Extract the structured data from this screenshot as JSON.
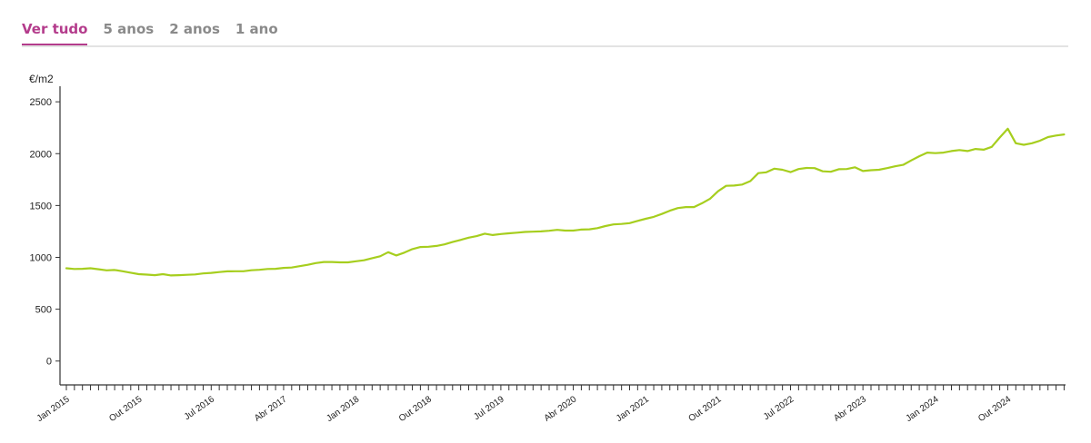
{
  "tabs": [
    {
      "label": "Ver tudo",
      "active": true
    },
    {
      "label": "5 anos",
      "active": false
    },
    {
      "label": "2 anos",
      "active": false
    },
    {
      "label": "1 ano",
      "active": false
    }
  ],
  "colors": {
    "accent": "#b43c8c",
    "line": "#a6ce1e",
    "inactive_tab": "#8a8a8a"
  },
  "chart_data": {
    "type": "line",
    "ylabel": "€/m2",
    "xlabel": "",
    "title": "",
    "ylim": [
      -230,
      2650
    ],
    "yticks": [
      0,
      500,
      1000,
      1500,
      2000,
      2500
    ],
    "x_start": "2015-01",
    "x_end": "2025-05",
    "x_tick_labels": [
      "Jan 2015",
      "Out 2015",
      "Jul 2016",
      "Abr 2017",
      "Jan 2018",
      "Out 2018",
      "Jul 2019",
      "Abr 2020",
      "Jan 2021",
      "Out 2021",
      "Jul 2022",
      "Abr 2023",
      "Jan 2024",
      "Out 2024"
    ],
    "grid": false,
    "legend": "none",
    "series": [
      {
        "name": "",
        "x": [
          "2015-01",
          "2015-02",
          "2015-03",
          "2015-04",
          "2015-05",
          "2015-06",
          "2015-07",
          "2015-08",
          "2015-09",
          "2015-10",
          "2015-11",
          "2015-12",
          "2016-01",
          "2016-02",
          "2016-03",
          "2016-04",
          "2016-05",
          "2016-06",
          "2016-07",
          "2016-08",
          "2016-09",
          "2016-10",
          "2016-11",
          "2016-12",
          "2017-01",
          "2017-02",
          "2017-03",
          "2017-04",
          "2017-05",
          "2017-06",
          "2017-07",
          "2017-08",
          "2017-09",
          "2017-10",
          "2017-11",
          "2017-12",
          "2018-01",
          "2018-02",
          "2018-03",
          "2018-04",
          "2018-05",
          "2018-06",
          "2018-07",
          "2018-08",
          "2018-09",
          "2018-10",
          "2018-11",
          "2018-12",
          "2019-01",
          "2019-02",
          "2019-03",
          "2019-04",
          "2019-05",
          "2019-06",
          "2019-07",
          "2019-08",
          "2019-09",
          "2019-10",
          "2019-11",
          "2019-12",
          "2020-01",
          "2020-02",
          "2020-03",
          "2020-04",
          "2020-05",
          "2020-06",
          "2020-07",
          "2020-08",
          "2020-09",
          "2020-10",
          "2020-11",
          "2020-12",
          "2021-01",
          "2021-02",
          "2021-03",
          "2021-04",
          "2021-05",
          "2021-06",
          "2021-07",
          "2021-08",
          "2021-09",
          "2021-10",
          "2021-11",
          "2021-12",
          "2022-01",
          "2022-02",
          "2022-03",
          "2022-04",
          "2022-05",
          "2022-06",
          "2022-07",
          "2022-08",
          "2022-09",
          "2022-10",
          "2022-11",
          "2022-12",
          "2023-01",
          "2023-02",
          "2023-03",
          "2023-04",
          "2023-05",
          "2023-06",
          "2023-07",
          "2023-08",
          "2023-09",
          "2023-10",
          "2023-11",
          "2023-12",
          "2024-01",
          "2024-02",
          "2024-03",
          "2024-04",
          "2024-05",
          "2024-06",
          "2024-07",
          "2024-08",
          "2024-09",
          "2024-10",
          "2024-11",
          "2024-12",
          "2025-01",
          "2025-02",
          "2025-03",
          "2025-04",
          "2025-05"
        ],
        "y": [
          895,
          888,
          890,
          895,
          885,
          875,
          878,
          866,
          852,
          838,
          834,
          828,
          838,
          826,
          828,
          832,
          835,
          845,
          850,
          858,
          865,
          866,
          866,
          876,
          880,
          888,
          890,
          898,
          902,
          915,
          928,
          945,
          955,
          955,
          952,
          952,
          962,
          972,
          992,
          1010,
          1050,
          1018,
          1045,
          1080,
          1100,
          1102,
          1110,
          1125,
          1148,
          1168,
          1190,
          1205,
          1228,
          1215,
          1225,
          1232,
          1238,
          1245,
          1248,
          1250,
          1256,
          1265,
          1258,
          1258,
          1268,
          1270,
          1282,
          1302,
          1318,
          1322,
          1330,
          1352,
          1372,
          1390,
          1418,
          1450,
          1475,
          1485,
          1485,
          1522,
          1565,
          1638,
          1690,
          1692,
          1702,
          1735,
          1812,
          1820,
          1855,
          1845,
          1822,
          1852,
          1862,
          1860,
          1830,
          1825,
          1850,
          1852,
          1868,
          1832,
          1840,
          1845,
          1860,
          1878,
          1892,
          1935,
          1975,
          2010,
          2005,
          2010,
          2025,
          2035,
          2025,
          2045,
          2038,
          2065,
          2155,
          2240,
          2100,
          2085,
          2100,
          2125,
          2160,
          2175,
          2185
        ]
      }
    ]
  }
}
